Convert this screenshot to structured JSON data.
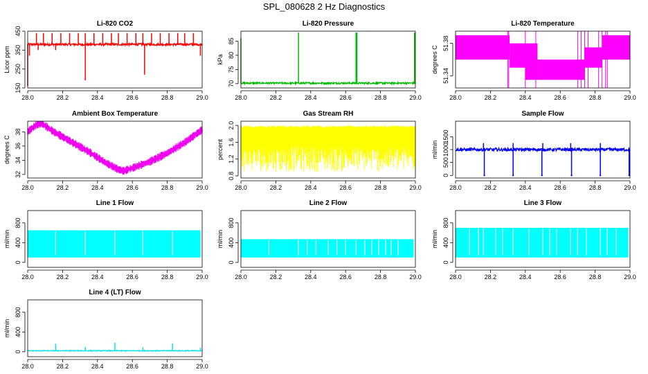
{
  "page": {
    "title": "SPL_080628  2 Hz Diagnostics"
  },
  "chart_data": [
    {
      "type": "line",
      "title": "Li-820 CO2",
      "ylabel": "Licor ppm",
      "xlim": [
        28.0,
        29.0
      ],
      "ylim": [
        150,
        450
      ],
      "xticks": [
        28.0,
        28.2,
        28.4,
        28.6,
        28.8,
        29.0
      ],
      "xtick_labels": [
        "28.0",
        "28.2",
        "28.4",
        "28.6",
        "28.8",
        "29.0"
      ],
      "yticks": [
        150,
        250,
        350,
        450
      ],
      "ytick_labels": [
        "150",
        "250",
        "350",
        "450"
      ],
      "color": "#ff0000",
      "baseline": {
        "level": 380,
        "noise": 6
      },
      "spikes": [
        [
          28.0,
          160
        ],
        [
          28.01,
          320
        ],
        [
          28.05,
          440
        ],
        [
          28.06,
          350
        ],
        [
          28.09,
          440
        ],
        [
          28.14,
          440
        ],
        [
          28.16,
          350
        ],
        [
          28.19,
          440
        ],
        [
          28.24,
          440
        ],
        [
          28.29,
          440
        ],
        [
          28.33,
          440
        ],
        [
          28.33,
          190
        ],
        [
          28.38,
          440
        ],
        [
          28.43,
          440
        ],
        [
          28.48,
          440
        ],
        [
          28.52,
          440
        ],
        [
          28.57,
          440
        ],
        [
          28.62,
          440
        ],
        [
          28.66,
          440
        ],
        [
          28.67,
          220
        ],
        [
          28.71,
          440
        ],
        [
          28.76,
          440
        ],
        [
          28.81,
          440
        ],
        [
          28.86,
          440
        ],
        [
          28.9,
          440
        ],
        [
          28.95,
          440
        ],
        [
          28.99,
          320
        ]
      ]
    },
    {
      "type": "line",
      "title": "Li-820 Pressure",
      "ylabel": "kPa",
      "xlim": [
        28.0,
        29.0
      ],
      "ylim": [
        68.5,
        88.5
      ],
      "xticks": [
        28.0,
        28.2,
        28.4,
        28.6,
        28.8,
        29.0
      ],
      "xtick_labels": [
        "28.0",
        "28.2",
        "28.4",
        "28.6",
        "28.8",
        "29.0"
      ],
      "yticks": [
        70,
        75,
        80,
        85
      ],
      "ytick_labels": [
        "70",
        "75",
        "80",
        "85"
      ],
      "color": "#00bb00",
      "baseline": {
        "level": 70.2,
        "noise": 0.3
      },
      "spikes": [
        [
          28.0,
          86
        ],
        [
          28.33,
          88
        ],
        [
          28.66,
          88
        ],
        [
          28.665,
          88
        ],
        [
          28.995,
          88
        ]
      ]
    },
    {
      "type": "area",
      "title": "Li-820 Temperature",
      "ylabel": "degrees C",
      "xlim": [
        28.0,
        29.0
      ],
      "ylim": [
        51.325,
        51.395
      ],
      "xticks": [
        28.0,
        28.2,
        28.4,
        28.6,
        28.8,
        29.0
      ],
      "xtick_labels": [
        "28.0",
        "28.2",
        "28.4",
        "28.6",
        "28.8",
        "29.0"
      ],
      "yticks": [
        51.34,
        51.38
      ],
      "ytick_labels": [
        "51.34",
        "51.38"
      ],
      "color": "#ff00ff",
      "bands": [
        [
          28.0,
          28.31,
          51.36,
          51.39
        ],
        [
          28.31,
          28.4,
          51.35,
          51.38
        ],
        [
          28.4,
          28.47,
          51.335,
          51.38
        ],
        [
          28.47,
          28.74,
          51.335,
          51.36
        ],
        [
          28.74,
          28.84,
          51.35,
          51.375
        ],
        [
          28.84,
          29.0,
          51.36,
          51.39
        ]
      ]
    },
    {
      "type": "line",
      "title": "Ambient Box Temperature",
      "ylabel": "degrees C",
      "xlim": [
        28.0,
        29.0
      ],
      "ylim": [
        31.5,
        39.5
      ],
      "xticks": [
        28.0,
        28.2,
        28.4,
        28.6,
        28.8,
        29.0
      ],
      "xtick_labels": [
        "28.0",
        "28.2",
        "28.4",
        "28.6",
        "28.8",
        "29.0"
      ],
      "yticks": [
        32,
        34,
        36,
        38
      ],
      "ytick_labels": [
        "32",
        "34",
        "36",
        "38"
      ],
      "color": "#ee00ee",
      "x": [
        28.0,
        28.05,
        28.08,
        28.15,
        28.25,
        28.35,
        28.45,
        28.52,
        28.55,
        28.6,
        28.7,
        28.8,
        28.9,
        29.0
      ],
      "y": [
        38.0,
        39.0,
        39.2,
        38.0,
        36.6,
        35.2,
        33.6,
        32.7,
        32.5,
        32.9,
        33.8,
        35.0,
        36.5,
        38.3
      ],
      "band_width": 1.2
    },
    {
      "type": "area",
      "title": "Gas Stream RH",
      "ylabel": "percent",
      "xlim": [
        28.0,
        29.0
      ],
      "ylim": [
        0.75,
        2.1
      ],
      "xticks": [
        28.0,
        28.2,
        28.4,
        28.6,
        28.8,
        29.0
      ],
      "xtick_labels": [
        "28.0",
        "28.2",
        "28.4",
        "28.6",
        "28.8",
        "29.0"
      ],
      "yticks": [
        0.8,
        1.2,
        1.6,
        2.0
      ],
      "ytick_labels": [
        "0.8",
        "1.2",
        "1.6",
        "2.0"
      ],
      "color": "#ffff00",
      "low": 0.9,
      "high": 2.0,
      "core": [
        1.5,
        1.95
      ]
    },
    {
      "type": "line",
      "title": "Sample Flow",
      "ylabel": "ml/min",
      "xlim": [
        28.0,
        29.0
      ],
      "ylim": [
        -100,
        2100
      ],
      "xticks": [
        28.0,
        28.2,
        28.4,
        28.6,
        28.8,
        29.0
      ],
      "xtick_labels": [
        "28.0",
        "28.2",
        "28.4",
        "28.6",
        "28.8",
        "29.0"
      ],
      "yticks": [
        0,
        500,
        1000,
        1500
      ],
      "ytick_labels": [
        "0",
        "500",
        "1000",
        "1500"
      ],
      "color": "#0000ff",
      "baseline": {
        "level": 1000,
        "noise": 60
      },
      "dips": [
        28.165,
        28.33,
        28.495,
        28.665,
        28.83,
        28.995
      ],
      "dip_level": 0,
      "peaks": [
        28.16,
        28.33,
        28.5,
        28.66,
        28.83
      ]
    },
    {
      "type": "area",
      "title": "Line 1 Flow",
      "ylabel": "ml/min",
      "xlim": [
        28.0,
        29.0
      ],
      "ylim": [
        -100,
        1050
      ],
      "xticks": [
        28.0,
        28.2,
        28.4,
        28.6,
        28.8,
        29.0
      ],
      "xtick_labels": [
        "28.0",
        "28.2",
        "28.4",
        "28.6",
        "28.8",
        "29.0"
      ],
      "yticks": [
        0,
        400,
        800
      ],
      "ytick_labels": [
        "0",
        "400",
        "800"
      ],
      "color": "#00ffff",
      "low": 100,
      "high": 650,
      "gaps": [
        28.16,
        28.33,
        28.5,
        28.66,
        28.83
      ]
    },
    {
      "type": "area",
      "title": "Line 2 Flow",
      "ylabel": "ml/min",
      "xlim": [
        28.0,
        29.0
      ],
      "ylim": [
        -100,
        1050
      ],
      "xticks": [
        28.0,
        28.2,
        28.4,
        28.6,
        28.8,
        29.0
      ],
      "xtick_labels": [
        "28.0",
        "28.2",
        "28.4",
        "28.6",
        "28.8",
        "29.0"
      ],
      "yticks": [
        0,
        400,
        800
      ],
      "ytick_labels": [
        "0",
        "400",
        "800"
      ],
      "color": "#00ffff",
      "low": 100,
      "high": 470,
      "gaps": [
        28.16,
        28.33,
        28.38,
        28.43,
        28.5,
        28.55,
        28.6,
        28.66,
        28.71,
        28.75,
        28.79,
        28.83,
        28.86,
        28.9
      ]
    },
    {
      "type": "area",
      "title": "Line 3 Flow",
      "ylabel": "ml/min",
      "xlim": [
        28.0,
        29.0
      ],
      "ylim": [
        -100,
        1050
      ],
      "xticks": [
        28.0,
        28.2,
        28.4,
        28.6,
        28.8,
        29.0
      ],
      "xtick_labels": [
        "28.0",
        "28.2",
        "28.4",
        "28.6",
        "28.8",
        "29.0"
      ],
      "yticks": [
        0,
        400,
        800
      ],
      "ytick_labels": [
        "0",
        "400",
        "800"
      ],
      "color": "#00ffff",
      "low": 100,
      "high": 700,
      "gaps": [
        28.08,
        28.13,
        28.16,
        28.23,
        28.27,
        28.33,
        28.42,
        28.5,
        28.54,
        28.58,
        28.66,
        28.7,
        28.75,
        28.83,
        28.87,
        28.92
      ]
    },
    {
      "type": "line",
      "title": "Line 4 (LT) Flow",
      "ylabel": "ml/min",
      "xlim": [
        28.0,
        29.0
      ],
      "ylim": [
        -100,
        1050
      ],
      "xticks": [
        28.0,
        28.2,
        28.4,
        28.6,
        28.8,
        29.0
      ],
      "xtick_labels": [
        "28.0",
        "28.2",
        "28.4",
        "28.6",
        "28.8",
        "29.0"
      ],
      "yticks": [
        0,
        400,
        800
      ],
      "ytick_labels": [
        "0",
        "400",
        "800"
      ],
      "color": "#00e5e5",
      "baseline": {
        "level": 20,
        "noise": 8
      },
      "spikes": [
        [
          28.16,
          160
        ],
        [
          28.33,
          100
        ],
        [
          28.5,
          180
        ],
        [
          28.66,
          90
        ],
        [
          28.83,
          170
        ],
        [
          28.99,
          80
        ]
      ]
    }
  ]
}
